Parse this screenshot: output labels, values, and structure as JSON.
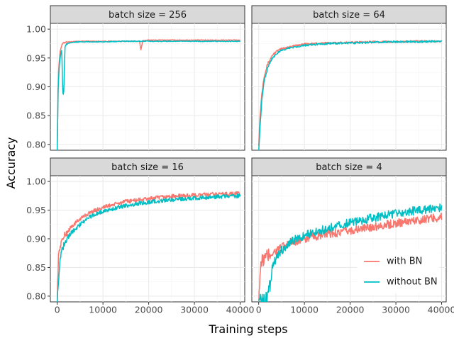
{
  "chart_data": {
    "type": "line",
    "xlabel": "Training steps",
    "ylabel": "Accuracy",
    "xlim": [
      -1500,
      41000
    ],
    "ylim": [
      0.79,
      1.01
    ],
    "x_ticks": [
      0,
      10000,
      20000,
      30000,
      40000
    ],
    "x_tick_labels": [
      "0",
      "10000",
      "20000",
      "30000",
      "40000"
    ],
    "y_ticks": [
      0.8,
      0.85,
      0.9,
      0.95,
      1.0
    ],
    "y_tick_labels": [
      "0.80",
      "0.85",
      "0.90",
      "0.95",
      "1.00"
    ],
    "grid": true,
    "legend": {
      "position": "bottom-right of lower-right panel",
      "entries": [
        {
          "name": "with BN",
          "color": "#F8766D"
        },
        {
          "name": "without BN",
          "color": "#00BFC4"
        }
      ]
    },
    "panels": [
      {
        "title": "batch size = 256",
        "series": [
          {
            "name": "with BN",
            "color": "#F8766D",
            "x": [
              0,
              300,
              600,
              900,
              1200,
              1600,
              2000,
              3000,
              5000,
              10000,
              15000,
              18000,
              18300,
              18700,
              20000,
              25000,
              30000,
              35000,
              40000
            ],
            "y": [
              0.8,
              0.93,
              0.96,
              0.97,
              0.975,
              0.977,
              0.978,
              0.978,
              0.979,
              0.979,
              0.979,
              0.979,
              0.963,
              0.98,
              0.981,
              0.981,
              0.981,
              0.981,
              0.981
            ]
          },
          {
            "name": "without BN",
            "color": "#00BFC4",
            "x": [
              0,
              200,
              500,
              800,
              1000,
              1200,
              1400,
              1700,
              2000,
              2500,
              3000,
              5000,
              10000,
              15000,
              20000,
              25000,
              30000,
              35000,
              40000
            ],
            "y": [
              0.79,
              0.9,
              0.94,
              0.96,
              0.965,
              0.89,
              0.885,
              0.97,
              0.974,
              0.976,
              0.977,
              0.978,
              0.978,
              0.979,
              0.979,
              0.979,
              0.979,
              0.979,
              0.979
            ]
          }
        ]
      },
      {
        "title": "batch size = 64",
        "series": [
          {
            "name": "with BN",
            "color": "#F8766D",
            "x": [
              0,
              300,
              700,
              1200,
              2000,
              3000,
              4000,
              5000,
              7000,
              10000,
              15000,
              20000,
              25000,
              30000,
              35000,
              40000
            ],
            "y": [
              0.8,
              0.85,
              0.89,
              0.92,
              0.94,
              0.955,
              0.962,
              0.966,
              0.97,
              0.974,
              0.976,
              0.977,
              0.978,
              0.978,
              0.979,
              0.979
            ]
          },
          {
            "name": "without BN",
            "color": "#00BFC4",
            "x": [
              0,
              300,
              700,
              1200,
              2000,
              3000,
              4000,
              5000,
              7000,
              10000,
              15000,
              20000,
              25000,
              30000,
              35000,
              40000
            ],
            "y": [
              0.79,
              0.83,
              0.88,
              0.91,
              0.935,
              0.95,
              0.958,
              0.963,
              0.968,
              0.972,
              0.975,
              0.976,
              0.977,
              0.978,
              0.978,
              0.979
            ]
          }
        ]
      },
      {
        "title": "batch size = 16",
        "series": [
          {
            "name": "with BN",
            "color": "#F8766D",
            "x": [
              0,
              300,
              700,
              1200,
              2000,
              3000,
              5000,
              7000,
              10000,
              15000,
              20000,
              25000,
              30000,
              35000,
              40000
            ],
            "y": [
              0.8,
              0.87,
              0.89,
              0.9,
              0.91,
              0.92,
              0.935,
              0.945,
              0.955,
              0.965,
              0.97,
              0.974,
              0.976,
              0.978,
              0.979
            ]
          },
          {
            "name": "without BN",
            "color": "#00BFC4",
            "x": [
              0,
              300,
              700,
              1200,
              2000,
              3000,
              5000,
              7000,
              10000,
              15000,
              20000,
              25000,
              30000,
              35000,
              40000
            ],
            "y": [
              0.79,
              0.83,
              0.87,
              0.885,
              0.9,
              0.91,
              0.925,
              0.938,
              0.948,
              0.958,
              0.964,
              0.968,
              0.971,
              0.973,
              0.975
            ]
          }
        ]
      },
      {
        "title": "batch size = 4",
        "series": [
          {
            "name": "with BN",
            "color": "#F8766D",
            "x": [
              0,
              300,
              700,
              1200,
              2000,
              3000,
              5000,
              7000,
              10000,
              15000,
              20000,
              25000,
              30000,
              35000,
              40000
            ],
            "y": [
              0.79,
              0.84,
              0.86,
              0.865,
              0.87,
              0.875,
              0.885,
              0.893,
              0.9,
              0.908,
              0.914,
              0.921,
              0.927,
              0.933,
              0.938
            ]
          },
          {
            "name": "without BN",
            "color": "#00BFC4",
            "x": [
              0,
              1500,
              2500,
              3000,
              4000,
              5000,
              7000,
              10000,
              15000,
              20000,
              25000,
              30000,
              35000,
              40000
            ],
            "y": [
              0.79,
              0.79,
              0.82,
              0.85,
              0.87,
              0.88,
              0.895,
              0.906,
              0.918,
              0.928,
              0.937,
              0.944,
              0.95,
              0.955
            ]
          }
        ]
      }
    ]
  }
}
